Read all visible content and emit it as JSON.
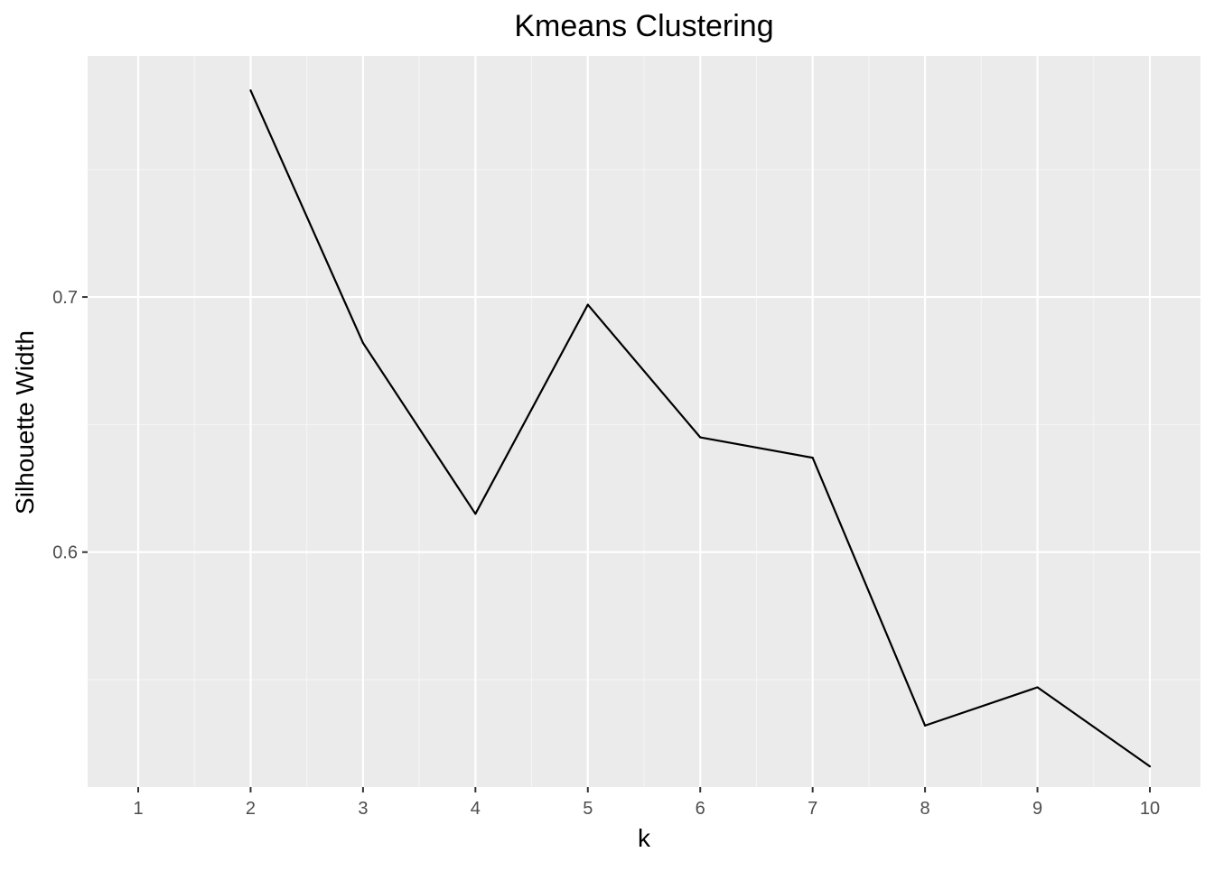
{
  "chart_data": {
    "type": "line",
    "title": "Kmeans Clustering",
    "xlabel": "k",
    "ylabel": "Silhouette Width",
    "x": [
      1,
      2,
      3,
      4,
      5,
      6,
      7,
      8,
      9,
      10
    ],
    "x_tick_labels": [
      "1",
      "2",
      "3",
      "4",
      "5",
      "6",
      "7",
      "8",
      "9",
      "10"
    ],
    "y_ticks": [
      0.6,
      0.7
    ],
    "y_tick_labels": [
      "0.6",
      "0.7"
    ],
    "xlim": [
      0.55,
      10.45
    ],
    "ylim": [
      0.5079,
      0.7945
    ],
    "grid": true,
    "series": [
      {
        "x": [
          2,
          3,
          4,
          5,
          6,
          7,
          8,
          9,
          10
        ],
        "values": [
          0.781,
          0.682,
          0.615,
          0.697,
          0.645,
          0.637,
          0.532,
          0.547,
          0.516
        ],
        "color": "#000000"
      }
    ],
    "colors": {
      "panel_background": "#ebebeb",
      "grid_major": "#ffffff",
      "grid_minor": "#f5f5f5",
      "tick": "#333333",
      "tick_label": "#4d4d4d"
    }
  }
}
